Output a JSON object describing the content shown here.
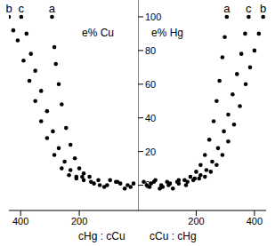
{
  "chart_data": [
    {
      "type": "scatter",
      "annotation": "e% Cu",
      "x_label": "cHg : cCu",
      "xlim": [
        440,
        0
      ],
      "xticks": [
        200,
        400
      ],
      "ylim": [
        -15,
        110
      ],
      "tick_labels": "x",
      "series": [
        {
          "name": "a",
          "color": "#000000",
          "marker": "circle",
          "x": [
            15,
            45,
            75,
            105,
            135,
            165,
            185,
            200,
            215,
            230,
            245,
            260,
            270,
            280,
            285,
            293
          ],
          "values": [
            1,
            -2,
            2,
            0,
            3,
            5,
            7,
            10,
            16,
            24,
            34,
            48,
            60,
            72,
            82,
            100
          ]
        },
        {
          "name": "c",
          "color": "#000000",
          "marker": "circle",
          "x": [
            25,
            60,
            95,
            130,
            160,
            190,
            210,
            230,
            250,
            270,
            290,
            310,
            330,
            350,
            365,
            380,
            398
          ],
          "values": [
            -1,
            1,
            3,
            0,
            2,
            5,
            5,
            9,
            14,
            22,
            32,
            44,
            56,
            68,
            78,
            90,
            100
          ]
        },
        {
          "name": "b",
          "color": "#000000",
          "marker": "circle",
          "x": [
            35,
            70,
            115,
            150,
            185,
            210,
            235,
            260,
            285,
            310,
            330,
            350,
            370,
            390,
            410,
            425,
            440
          ],
          "values": [
            0,
            2,
            -1,
            1,
            3,
            4,
            6,
            10,
            18,
            28,
            38,
            50,
            62,
            74,
            86,
            92,
            100
          ]
        }
      ]
    },
    {
      "type": "scatter",
      "annotation": "e% Hg",
      "x_label": "cCu : cHg",
      "xlim": [
        0,
        440
      ],
      "xticks": [
        200,
        400
      ],
      "ylim": [
        -15,
        110
      ],
      "yticks": [
        0,
        20,
        40,
        60,
        80,
        100
      ],
      "tick_labels": true,
      "series": [
        {
          "name": "a",
          "color": "#000000",
          "marker": "circle",
          "x": [
            20,
            40,
            60,
            80,
            100,
            120,
            140,
            160,
            180,
            200,
            215,
            230,
            245,
            260,
            270,
            280,
            290,
            298,
            305
          ],
          "values": [
            2,
            -1,
            3,
            0,
            2,
            -2,
            1,
            3,
            5,
            8,
            12,
            18,
            27,
            38,
            50,
            62,
            76,
            88,
            100
          ]
        },
        {
          "name": "c",
          "color": "#000000",
          "marker": "circle",
          "x": [
            30,
            55,
            85,
            110,
            140,
            170,
            195,
            215,
            235,
            255,
            275,
            295,
            310,
            325,
            340,
            355,
            368,
            380
          ],
          "values": [
            0,
            2,
            -1,
            1,
            3,
            2,
            4,
            6,
            9,
            14,
            22,
            32,
            42,
            54,
            66,
            78,
            90,
            100
          ]
        },
        {
          "name": "b",
          "color": "#000000",
          "marker": "circle",
          "x": [
            45,
            75,
            105,
            135,
            165,
            190,
            210,
            230,
            250,
            270,
            290,
            310,
            330,
            350,
            370,
            385,
            400,
            415,
            430
          ],
          "values": [
            1,
            -2,
            0,
            2,
            0,
            3,
            4,
            5,
            8,
            12,
            18,
            26,
            36,
            47,
            60,
            70,
            80,
            90,
            100
          ]
        }
      ]
    }
  ]
}
